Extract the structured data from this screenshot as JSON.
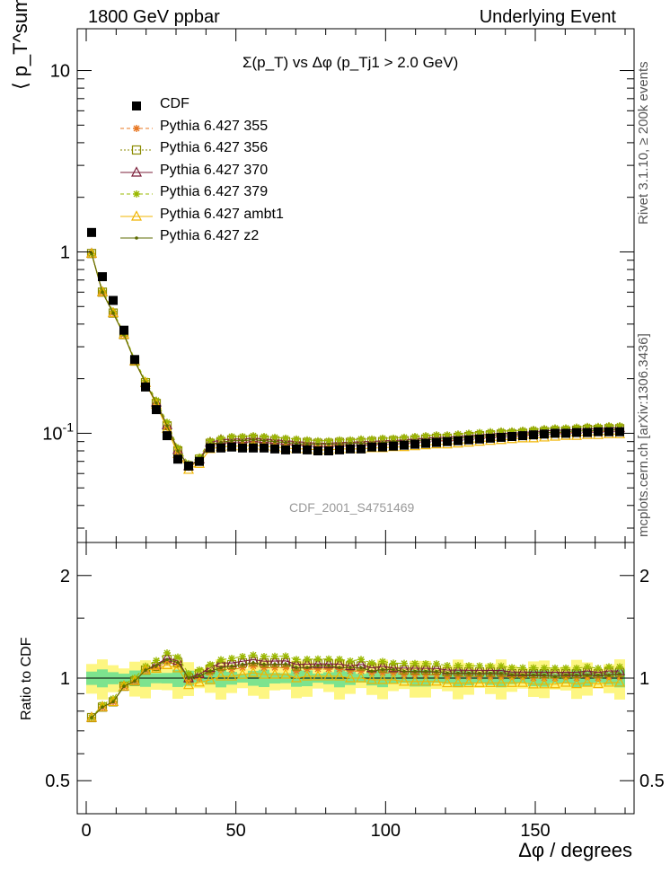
{
  "header": {
    "left": "1800 GeV ppbar",
    "right": "Underlying Event",
    "side_rivet": "Rivet 3.1.10, ≥ 200k events",
    "side_mcplots": "mcplots.cern.ch [arXiv:1306.3436]",
    "analysis_id": "CDF_2001_S4751469"
  },
  "chart_data": [
    {
      "type": "line",
      "panel": "main",
      "title": "Σ(p_T) vs Δφ (p_Tj1 > 2.0 GeV)",
      "ylabel": "⟨ p_T^sum ⟩",
      "xlim": [
        -3,
        183
      ],
      "ylim": [
        0.025,
        17
      ],
      "yscale": "log",
      "ytick_labels": [
        "10",
        "1",
        "10^-1"
      ],
      "legend_position": "top-left",
      "x": [
        1.8,
        5.4,
        9,
        12.6,
        16.2,
        19.8,
        23.4,
        27,
        30.6,
        34.2,
        37.8,
        41.4,
        45,
        48.6,
        52.2,
        55.8,
        59.4,
        63,
        66.6,
        70.2,
        73.8,
        77.4,
        81,
        84.6,
        88.2,
        91.8,
        95.4,
        99,
        102.6,
        106.2,
        109.8,
        113.4,
        117,
        120.6,
        124.2,
        127.8,
        131.4,
        135,
        138.6,
        142.2,
        145.8,
        149.4,
        153,
        156.6,
        160.2,
        163.8,
        167.4,
        171,
        174.6,
        178.2
      ],
      "series": [
        {
          "name": "CDF",
          "color": "#000000",
          "marker": "square",
          "values": [
            1.28,
            0.73,
            0.54,
            0.37,
            0.255,
            0.18,
            0.135,
            0.097,
            0.072,
            0.066,
            0.07,
            0.083,
            0.083,
            0.084,
            0.083,
            0.083,
            0.083,
            0.082,
            0.081,
            0.082,
            0.081,
            0.08,
            0.08,
            0.081,
            0.082,
            0.082,
            0.084,
            0.084,
            0.085,
            0.086,
            0.087,
            0.088,
            0.089,
            0.09,
            0.091,
            0.092,
            0.093,
            0.094,
            0.095,
            0.096,
            0.097,
            0.098,
            0.099,
            0.1,
            0.1,
            0.101,
            0.101,
            0.102,
            0.102,
            0.102
          ]
        },
        {
          "name": "Pythia 6.427 355",
          "color": "#e87722",
          "marker": "star",
          "dash": "4,3",
          "values": [
            0.98,
            0.6,
            0.46,
            0.35,
            0.25,
            0.19,
            0.145,
            0.108,
            0.079,
            0.065,
            0.07,
            0.086,
            0.088,
            0.089,
            0.089,
            0.09,
            0.089,
            0.088,
            0.087,
            0.086,
            0.086,
            0.085,
            0.085,
            0.086,
            0.086,
            0.086,
            0.087,
            0.087,
            0.088,
            0.088,
            0.089,
            0.09,
            0.091,
            0.091,
            0.092,
            0.093,
            0.094,
            0.095,
            0.096,
            0.097,
            0.098,
            0.098,
            0.099,
            0.1,
            0.101,
            0.101,
            0.102,
            0.102,
            0.103,
            0.103
          ]
        },
        {
          "name": "Pythia 6.427 356",
          "color": "#8a8a00",
          "marker": "open-square",
          "dash": "2,2",
          "values": [
            0.98,
            0.6,
            0.46,
            0.35,
            0.25,
            0.19,
            0.146,
            0.11,
            0.08,
            0.066,
            0.072,
            0.088,
            0.09,
            0.092,
            0.092,
            0.093,
            0.092,
            0.091,
            0.09,
            0.089,
            0.089,
            0.088,
            0.088,
            0.089,
            0.089,
            0.089,
            0.09,
            0.09,
            0.091,
            0.091,
            0.092,
            0.093,
            0.094,
            0.094,
            0.095,
            0.096,
            0.097,
            0.098,
            0.099,
            0.099,
            0.1,
            0.101,
            0.102,
            0.103,
            0.103,
            0.104,
            0.105,
            0.105,
            0.106,
            0.106
          ]
        },
        {
          "name": "Pythia 6.427 370",
          "color": "#7b1f3a",
          "marker": "open-triangle",
          "dash": "",
          "values": [
            0.98,
            0.6,
            0.46,
            0.35,
            0.25,
            0.19,
            0.148,
            0.111,
            0.081,
            0.066,
            0.072,
            0.089,
            0.092,
            0.093,
            0.093,
            0.094,
            0.093,
            0.092,
            0.091,
            0.09,
            0.089,
            0.088,
            0.088,
            0.089,
            0.089,
            0.09,
            0.09,
            0.091,
            0.091,
            0.092,
            0.093,
            0.094,
            0.095,
            0.095,
            0.096,
            0.097,
            0.098,
            0.099,
            0.1,
            0.1,
            0.101,
            0.102,
            0.103,
            0.104,
            0.104,
            0.105,
            0.106,
            0.106,
            0.107,
            0.107
          ]
        },
        {
          "name": "Pythia 6.427 379",
          "color": "#9ab800",
          "marker": "star",
          "dash": "4,3",
          "values": [
            0.98,
            0.61,
            0.47,
            0.355,
            0.255,
            0.195,
            0.152,
            0.115,
            0.083,
            0.068,
            0.074,
            0.091,
            0.094,
            0.096,
            0.096,
            0.097,
            0.096,
            0.095,
            0.094,
            0.093,
            0.092,
            0.091,
            0.091,
            0.092,
            0.092,
            0.093,
            0.093,
            0.094,
            0.094,
            0.095,
            0.096,
            0.097,
            0.098,
            0.098,
            0.099,
            0.1,
            0.101,
            0.102,
            0.103,
            0.103,
            0.104,
            0.105,
            0.106,
            0.107,
            0.107,
            0.108,
            0.109,
            0.109,
            0.11,
            0.11
          ]
        },
        {
          "name": "Pythia 6.427 ambt1",
          "color": "#f0b400",
          "marker": "open-triangle",
          "dash": "",
          "values": [
            0.98,
            0.6,
            0.46,
            0.35,
            0.25,
            0.19,
            0.144,
            0.106,
            0.077,
            0.063,
            0.068,
            0.082,
            0.084,
            0.085,
            0.085,
            0.086,
            0.085,
            0.084,
            0.083,
            0.082,
            0.082,
            0.081,
            0.081,
            0.082,
            0.082,
            0.082,
            0.083,
            0.083,
            0.084,
            0.084,
            0.085,
            0.086,
            0.087,
            0.087,
            0.088,
            0.089,
            0.09,
            0.091,
            0.092,
            0.093,
            0.094,
            0.094,
            0.095,
            0.096,
            0.097,
            0.097,
            0.098,
            0.098,
            0.099,
            0.099
          ]
        },
        {
          "name": "Pythia 6.427 z2",
          "color": "#5c6b00",
          "marker": "dot",
          "dash": "",
          "values": [
            0.98,
            0.6,
            0.46,
            0.35,
            0.25,
            0.19,
            0.147,
            0.11,
            0.08,
            0.066,
            0.071,
            0.087,
            0.089,
            0.091,
            0.091,
            0.092,
            0.091,
            0.09,
            0.089,
            0.088,
            0.087,
            0.087,
            0.087,
            0.087,
            0.088,
            0.088,
            0.088,
            0.089,
            0.09,
            0.09,
            0.091,
            0.092,
            0.093,
            0.093,
            0.094,
            0.095,
            0.096,
            0.097,
            0.098,
            0.098,
            0.099,
            0.1,
            0.101,
            0.101,
            0.102,
            0.103,
            0.103,
            0.104,
            0.104,
            0.105
          ]
        }
      ]
    },
    {
      "type": "line",
      "panel": "ratio",
      "ylabel": "Ratio to CDF",
      "xlabel": "Δφ / degrees",
      "xlim": [
        -3,
        183
      ],
      "ylim": [
        0.4,
        2.5
      ],
      "yscale": "log",
      "ytick_labels": [
        "2",
        "1",
        "0.5"
      ],
      "xtick_labels": [
        "0",
        "50",
        "100",
        "150"
      ],
      "bands": [
        {
          "name": "stat",
          "color": "#7de38e",
          "halfwidth": 0.045
        },
        {
          "name": "stat+syst",
          "color": "#fdf682",
          "halfwidth": 0.1
        }
      ]
    }
  ]
}
